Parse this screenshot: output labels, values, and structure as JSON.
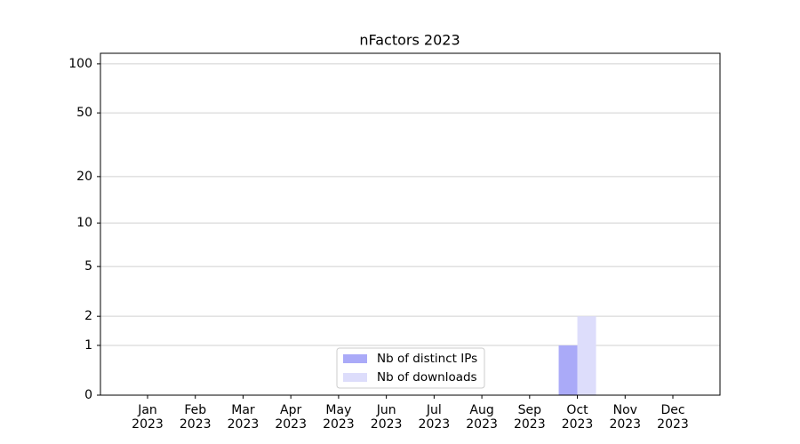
{
  "chart_data": {
    "type": "bar",
    "title": "nFactors 2023",
    "categories": [
      "Jan\n2023",
      "Feb\n2023",
      "Mar\n2023",
      "Apr\n2023",
      "May\n2023",
      "Jun\n2023",
      "Jul\n2023",
      "Aug\n2023",
      "Sep\n2023",
      "Oct\n2023",
      "Nov\n2023",
      "Dec\n2023"
    ],
    "series": [
      {
        "name": "Nb of distinct IPs",
        "color": "#aaaaf8",
        "values": [
          0,
          0,
          0,
          0,
          0,
          0,
          0,
          0,
          0,
          1,
          0,
          0
        ]
      },
      {
        "name": "Nb of downloads",
        "color": "#ddddfb",
        "values": [
          0,
          0,
          0,
          0,
          0,
          0,
          0,
          0,
          0,
          2,
          0,
          0
        ]
      }
    ],
    "yscale": "log1p",
    "ylim": [
      0,
      116
    ],
    "yticks": [
      0,
      1,
      2,
      5,
      10,
      20,
      50,
      100
    ],
    "grid": true,
    "legend": "lower center"
  }
}
